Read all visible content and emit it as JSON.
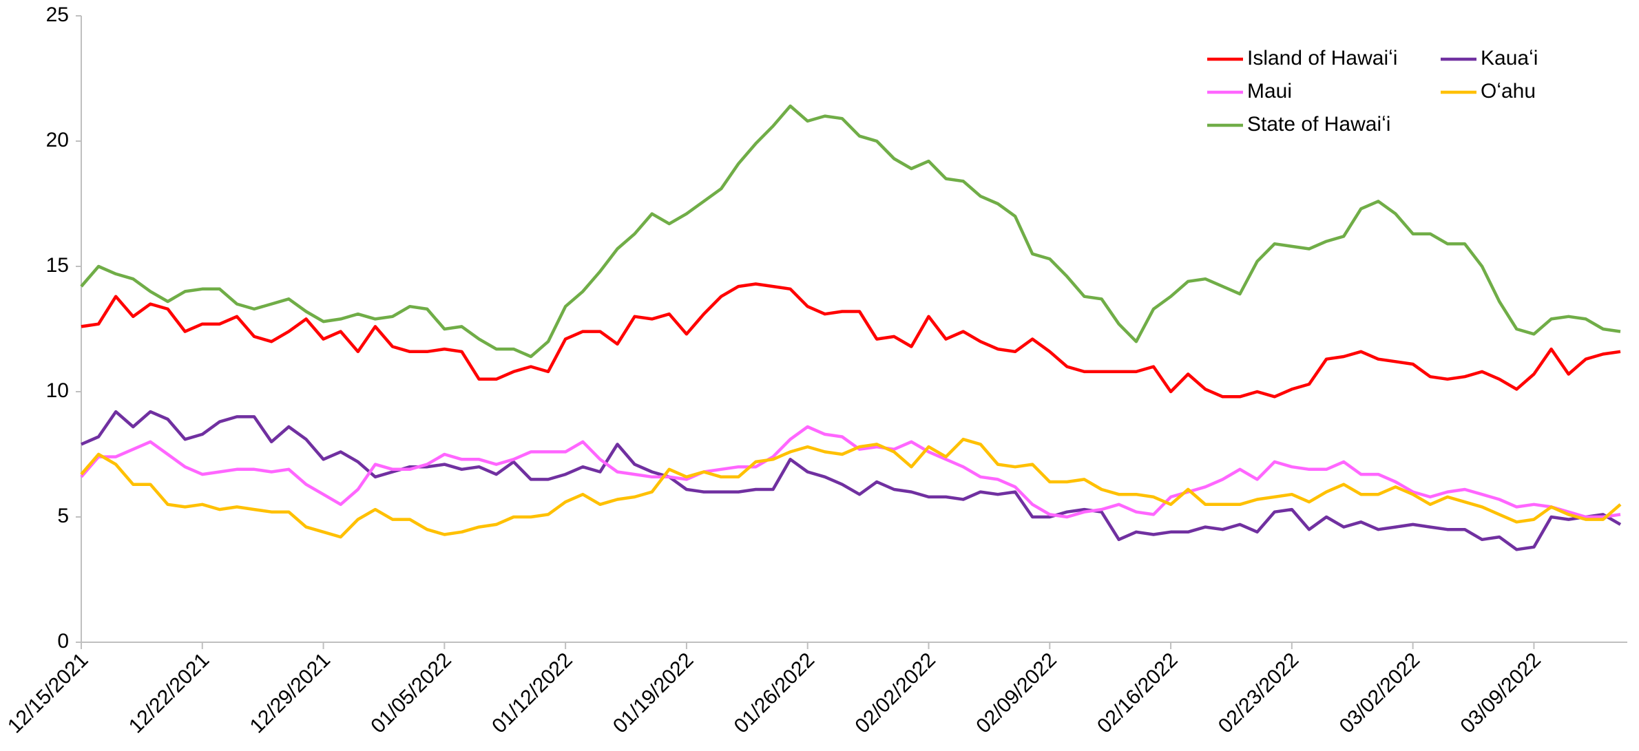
{
  "chart_data": {
    "type": "line",
    "categories": [
      "12/15/2021",
      null,
      null,
      null,
      null,
      null,
      null,
      "12/22/2021",
      null,
      null,
      null,
      null,
      null,
      null,
      "12/29/2021",
      null,
      null,
      null,
      null,
      null,
      null,
      "01/05/2022",
      null,
      null,
      null,
      null,
      null,
      null,
      "01/12/2022",
      null,
      null,
      null,
      null,
      null,
      null,
      "01/19/2022",
      null,
      null,
      null,
      null,
      null,
      null,
      "01/26/2022",
      null,
      null,
      null,
      null,
      null,
      null,
      "02/02/2022",
      null,
      null,
      null,
      null,
      null,
      null,
      "02/09/2022",
      null,
      null,
      null,
      null,
      null,
      null,
      "02/16/2022",
      null,
      null,
      null,
      null,
      null,
      null,
      "02/23/2022",
      null,
      null,
      null,
      null,
      null,
      null,
      "03/02/2022",
      null,
      null,
      null,
      null,
      null,
      null,
      "03/09/2022",
      null,
      null,
      null,
      null,
      null
    ],
    "series": [
      {
        "name": "Island of Hawaiʻi",
        "color": "#ff0000",
        "values": [
          12.6,
          12.7,
          13.8,
          13.0,
          13.5,
          13.3,
          12.4,
          12.7,
          12.7,
          13.0,
          12.2,
          12.0,
          12.4,
          12.9,
          12.1,
          12.4,
          11.6,
          12.6,
          11.8,
          11.6,
          11.6,
          11.7,
          11.6,
          10.5,
          10.5,
          10.8,
          11.0,
          10.8,
          12.1,
          12.4,
          12.4,
          11.9,
          13.0,
          12.9,
          13.1,
          12.3,
          13.1,
          13.8,
          14.2,
          14.3,
          14.2,
          14.1,
          13.4,
          13.1,
          13.2,
          13.2,
          12.1,
          12.2,
          11.8,
          13.0,
          12.1,
          12.4,
          12.0,
          11.7,
          11.6,
          12.1,
          11.6,
          11.0,
          10.8,
          10.8,
          10.8,
          10.8,
          11.0,
          10.0,
          10.7,
          10.1,
          9.8,
          9.8,
          10.0,
          9.8,
          10.1,
          10.3,
          11.3,
          11.4,
          11.6,
          11.3,
          11.2,
          11.1,
          10.6,
          10.5,
          10.6,
          10.8,
          10.5,
          10.1,
          10.7,
          11.7,
          10.7,
          11.3,
          11.5,
          11.6
        ]
      },
      {
        "name": "Kauaʻi",
        "color": "#7030a0",
        "values": [
          7.9,
          8.2,
          9.2,
          8.6,
          9.2,
          8.9,
          8.1,
          8.3,
          8.8,
          9.0,
          9.0,
          8.0,
          8.6,
          8.1,
          7.3,
          7.6,
          7.2,
          6.6,
          6.8,
          7.0,
          7.0,
          7.1,
          6.9,
          7.0,
          6.7,
          7.2,
          6.5,
          6.5,
          6.7,
          7.0,
          6.8,
          7.9,
          7.1,
          6.8,
          6.6,
          6.1,
          6.0,
          6.0,
          6.0,
          6.1,
          6.1,
          7.3,
          6.8,
          6.6,
          6.3,
          5.9,
          6.4,
          6.1,
          6.0,
          5.8,
          5.8,
          5.7,
          6.0,
          5.9,
          6.0,
          5.0,
          5.0,
          5.2,
          5.3,
          5.2,
          4.1,
          4.4,
          4.3,
          4.4,
          4.4,
          4.6,
          4.5,
          4.7,
          4.4,
          5.2,
          5.3,
          4.5,
          5.0,
          4.6,
          4.8,
          4.5,
          4.6,
          4.7,
          4.6,
          4.5,
          4.5,
          4.1,
          4.2,
          3.7,
          3.8,
          5.0,
          4.9,
          5.0,
          5.1,
          4.7
        ]
      },
      {
        "name": "Maui",
        "color": "#ff66ff",
        "values": [
          6.6,
          7.4,
          7.4,
          7.7,
          8.0,
          7.5,
          7.0,
          6.7,
          6.8,
          6.9,
          6.9,
          6.8,
          6.9,
          6.3,
          5.9,
          5.5,
          6.1,
          7.1,
          6.9,
          6.9,
          7.1,
          7.5,
          7.3,
          7.3,
          7.1,
          7.3,
          7.6,
          7.6,
          7.6,
          8.0,
          7.3,
          6.8,
          6.7,
          6.6,
          6.6,
          6.5,
          6.8,
          6.9,
          7.0,
          7.0,
          7.4,
          8.1,
          8.6,
          8.3,
          8.2,
          7.7,
          7.8,
          7.7,
          8.0,
          7.6,
          7.3,
          7.0,
          6.6,
          6.5,
          6.2,
          5.5,
          5.1,
          5.0,
          5.2,
          5.3,
          5.5,
          5.2,
          5.1,
          5.8,
          6.0,
          6.2,
          6.5,
          6.9,
          6.5,
          7.2,
          7.0,
          6.9,
          6.9,
          7.2,
          6.7,
          6.7,
          6.4,
          6.0,
          5.8,
          6.0,
          6.1,
          5.9,
          5.7,
          5.4,
          5.5,
          5.4,
          5.2,
          5.0,
          5.0,
          5.1
        ]
      },
      {
        "name": "Oʻahu",
        "color": "#ffc000",
        "values": [
          6.7,
          7.5,
          7.1,
          6.3,
          6.3,
          5.5,
          5.4,
          5.5,
          5.3,
          5.4,
          5.3,
          5.2,
          5.2,
          4.6,
          4.4,
          4.2,
          4.9,
          5.3,
          4.9,
          4.9,
          4.5,
          4.3,
          4.4,
          4.6,
          4.7,
          5.0,
          5.0,
          5.1,
          5.6,
          5.9,
          5.5,
          5.7,
          5.8,
          6.0,
          6.9,
          6.6,
          6.8,
          6.6,
          6.6,
          7.2,
          7.3,
          7.6,
          7.8,
          7.6,
          7.5,
          7.8,
          7.9,
          7.6,
          7.0,
          7.8,
          7.4,
          8.1,
          7.9,
          7.1,
          7.0,
          7.1,
          6.4,
          6.4,
          6.5,
          6.1,
          5.9,
          5.9,
          5.8,
          5.5,
          6.1,
          5.5,
          5.5,
          5.5,
          5.7,
          5.8,
          5.9,
          5.6,
          6.0,
          6.3,
          5.9,
          5.9,
          6.2,
          5.9,
          5.5,
          5.8,
          5.6,
          5.4,
          5.1,
          4.8,
          4.9,
          5.4,
          5.1,
          4.9,
          4.9,
          5.5
        ]
      },
      {
        "name": "State of Hawaiʻi",
        "color": "#70ad47",
        "values": [
          14.2,
          15.0,
          14.7,
          14.5,
          14.0,
          13.6,
          14.0,
          14.1,
          14.1,
          13.5,
          13.3,
          13.5,
          13.7,
          13.2,
          12.8,
          12.9,
          13.1,
          12.9,
          13.0,
          13.4,
          13.3,
          12.5,
          12.6,
          12.1,
          11.7,
          11.7,
          11.4,
          12.0,
          13.4,
          14.0,
          14.8,
          15.7,
          16.3,
          17.1,
          16.7,
          17.1,
          17.6,
          18.1,
          19.1,
          19.9,
          20.6,
          21.4,
          20.8,
          21.0,
          20.9,
          20.2,
          20.0,
          19.3,
          18.9,
          19.2,
          18.5,
          18.4,
          17.8,
          17.5,
          17.0,
          15.5,
          15.3,
          14.6,
          13.8,
          13.7,
          12.7,
          12.0,
          13.3,
          13.8,
          14.4,
          14.5,
          14.2,
          13.9,
          15.2,
          15.9,
          15.8,
          15.7,
          16.0,
          16.2,
          17.3,
          17.6,
          17.1,
          16.3,
          16.3,
          15.9,
          15.9,
          15.0,
          13.6,
          12.5,
          12.3,
          12.9,
          13.0,
          12.9,
          12.5,
          12.4
        ]
      }
    ],
    "ylim": [
      0,
      25
    ],
    "yticks": [
      0,
      5,
      10,
      15,
      20,
      25
    ],
    "grid": false,
    "legend": "top-right"
  }
}
